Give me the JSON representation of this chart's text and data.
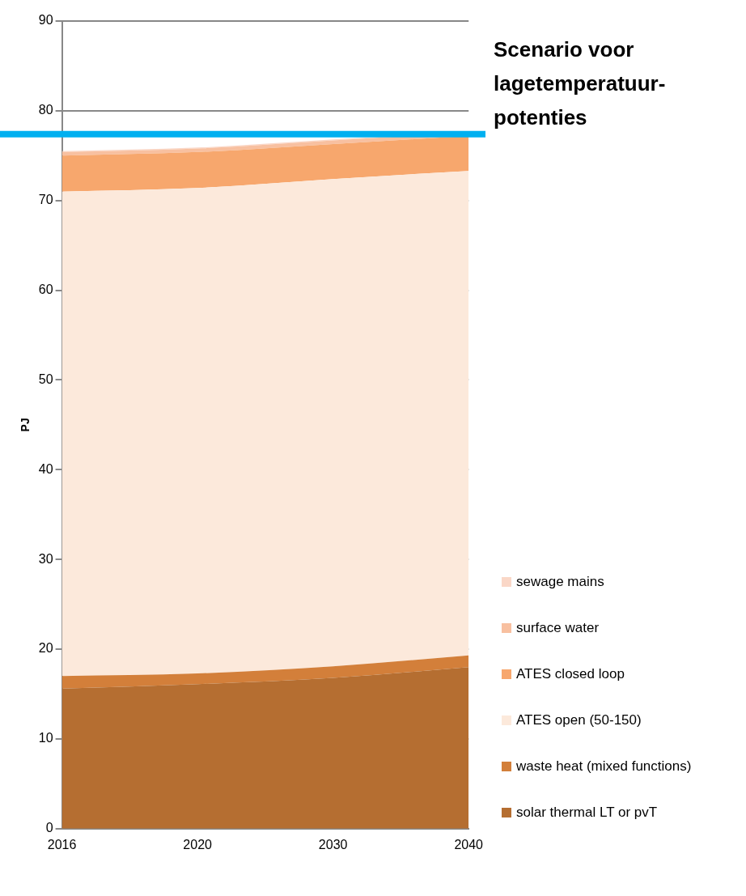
{
  "chart_data": {
    "type": "area",
    "title": "Scenario voor lagetemperatuur-potenties",
    "ylabel": "PJ",
    "categories": [
      "2016",
      "2020",
      "2030",
      "2040"
    ],
    "stacked": true,
    "series": [
      {
        "name": "solar thermal LT or pvT",
        "color": "#b56e31",
        "values": [
          15.6,
          16.1,
          16.8,
          18.0
        ]
      },
      {
        "name": "waste heat (mixed functions)",
        "color": "#d37f3a",
        "values": [
          1.4,
          1.2,
          1.3,
          1.3
        ]
      },
      {
        "name": "ATES open (50-150)",
        "color": "#fce9db",
        "values": [
          54.0,
          54.1,
          54.3,
          54.0
        ]
      },
      {
        "name": "ATES closed loop",
        "color": "#f7a76d",
        "values": [
          4.0,
          4.0,
          3.9,
          3.9
        ]
      },
      {
        "name": "surface water",
        "color": "#f8c0a0",
        "values": [
          0.4,
          0.4,
          0.4,
          0.4
        ]
      },
      {
        "name": "sewage mains",
        "color": "#fad7c7",
        "values": [
          0.1,
          0.1,
          0.1,
          0.1
        ]
      }
    ],
    "ylim": [
      0,
      90
    ],
    "yticks": [
      0,
      10,
      20,
      30,
      40,
      50,
      60,
      70,
      80,
      90
    ],
    "grid": "y",
    "legend": "right",
    "ref_lines": [
      {
        "axis": "y",
        "value": 77.4,
        "color": "#00b0f0"
      }
    ]
  }
}
